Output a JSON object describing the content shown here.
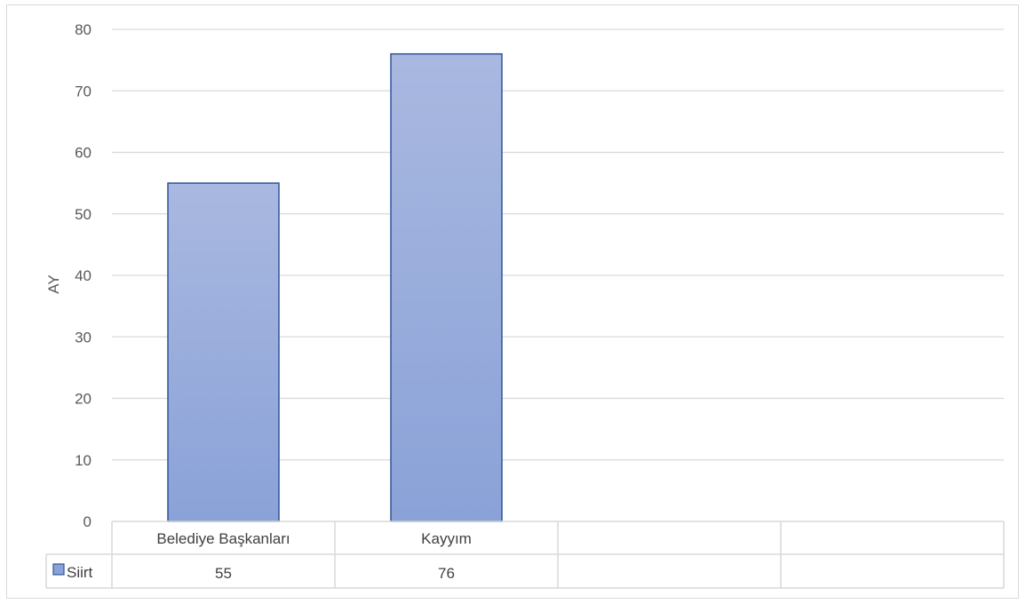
{
  "chart_data": {
    "type": "bar",
    "categories": [
      "Belediye Başkanları",
      "Kayyım",
      "",
      ""
    ],
    "series": [
      {
        "name": "Siirt",
        "values": [
          55,
          76,
          null,
          null
        ]
      }
    ],
    "ylabel": "AY",
    "xlabel": "",
    "ylim": [
      0,
      80
    ],
    "yticks": [
      0,
      10,
      20,
      30,
      40,
      50,
      60,
      70,
      80
    ],
    "grid": true,
    "legend": "data-table",
    "data_table": true,
    "colors": {
      "bar_fill_top": "#A9B8E0",
      "bar_fill_bottom": "#8AA2D8",
      "bar_stroke": "#2F5597",
      "gridline": "#d9d9d9",
      "table_border": "#d9d9d9"
    }
  }
}
